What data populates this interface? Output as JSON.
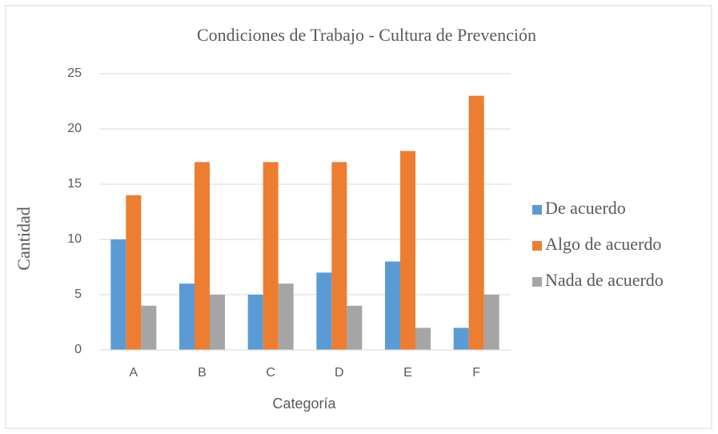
{
  "chart_data": {
    "type": "bar",
    "title": "Condiciones de Trabajo - Cultura de Prevención",
    "x_label": "Categoría",
    "y_label": "Cantidad",
    "categories": [
      "A",
      "B",
      "C",
      "D",
      "E",
      "F"
    ],
    "series": [
      {
        "name": "De acuerdo",
        "color": "#5b9bd5",
        "values": [
          10,
          6,
          5,
          7,
          8,
          2
        ]
      },
      {
        "name": "Algo de acuerdo",
        "color": "#ed7d31",
        "values": [
          14,
          17,
          17,
          17,
          18,
          23
        ]
      },
      {
        "name": "Nada de acuerdo",
        "color": "#a5a5a5",
        "values": [
          4,
          5,
          6,
          4,
          2,
          5
        ]
      }
    ],
    "ylim": [
      0,
      25
    ],
    "yticks": [
      0,
      5,
      10,
      15,
      20,
      25
    ],
    "grid": true,
    "legend": "right"
  }
}
